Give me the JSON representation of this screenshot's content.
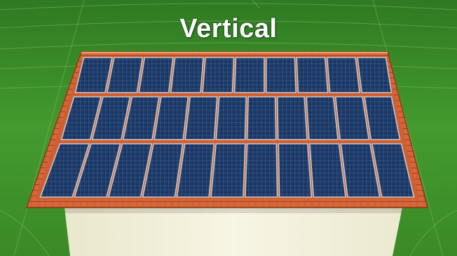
{
  "title": "Vertical",
  "colors": {
    "grass": "#3f8f2a",
    "grass_dark": "#2e6f1c",
    "roof_tile": "#d9693a",
    "roof_tile_dark": "#a9441e",
    "panel": "#1d3a66",
    "panel_cell_line": "#3a5d93",
    "panel_frame": "#c9c9c9",
    "wall": "#f3f1dc"
  },
  "panel_rows": [
    {
      "row": 1,
      "count": 10
    },
    {
      "row": 2,
      "count": 11
    },
    {
      "row": 3,
      "count": 11
    }
  ]
}
